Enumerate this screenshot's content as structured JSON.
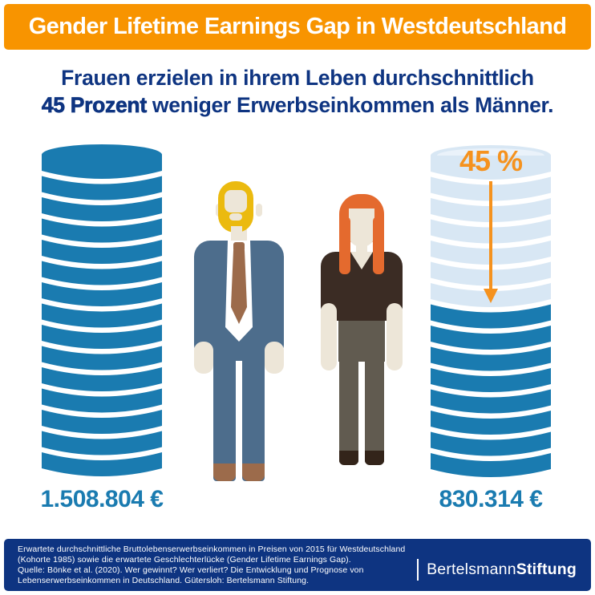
{
  "palette": {
    "header_orange": "#F89400",
    "accent_orange": "#F5921E",
    "navy": "#0E3481",
    "coin_blue": "#1A7BB0",
    "coin_light": "#D8E7F4",
    "coin_face_light": "#EAF2FA"
  },
  "header": {
    "title": "Gender Lifetime Earnings Gap in Westdeutschland"
  },
  "subtitle": {
    "line1": "Frauen erzielen in ihrem Leben durchschnittlich",
    "line2_bold": "45 Prozent",
    "line2_rest": " weniger Erwerbseinkommen als Männer."
  },
  "chart_data": {
    "type": "bar",
    "title": "Gender Lifetime Earnings Gap in Westdeutschland",
    "subtitle": "Frauen erzielen in ihrem Leben durchschnittlich 45 Prozent weniger Erwerbseinkommen als Männer.",
    "categories": [
      "Männer",
      "Frauen"
    ],
    "values": [
      1508804,
      830314
    ],
    "value_labels": [
      "1.508.804 €",
      "830.314 €"
    ],
    "unit": "€",
    "gap": {
      "percent": 45,
      "label": "45 %"
    },
    "coins": {
      "total": 15,
      "faded_on_female_stack": 7
    },
    "legend_position": "none",
    "grid": false
  },
  "footer": {
    "source_lines": [
      "Erwartete durchschnittliche Bruttolebenserwerbseinkommen in Preisen von 2015 für Westdeutschland",
      "(Kohorte 1985) sowie die erwartete Geschlechterlücke (Gender Lifetime Earnings Gap).",
      "Quelle: Bönke et al. (2020). Wer gewinnt? Wer verliert? Die Entwicklung und Prognose von",
      "Lebenserwerbseinkommen in Deutschland. Gütersloh: Bertelsmann Stiftung."
    ],
    "logo_regular": "Bertelsmann",
    "logo_bold": "Stiftung"
  }
}
